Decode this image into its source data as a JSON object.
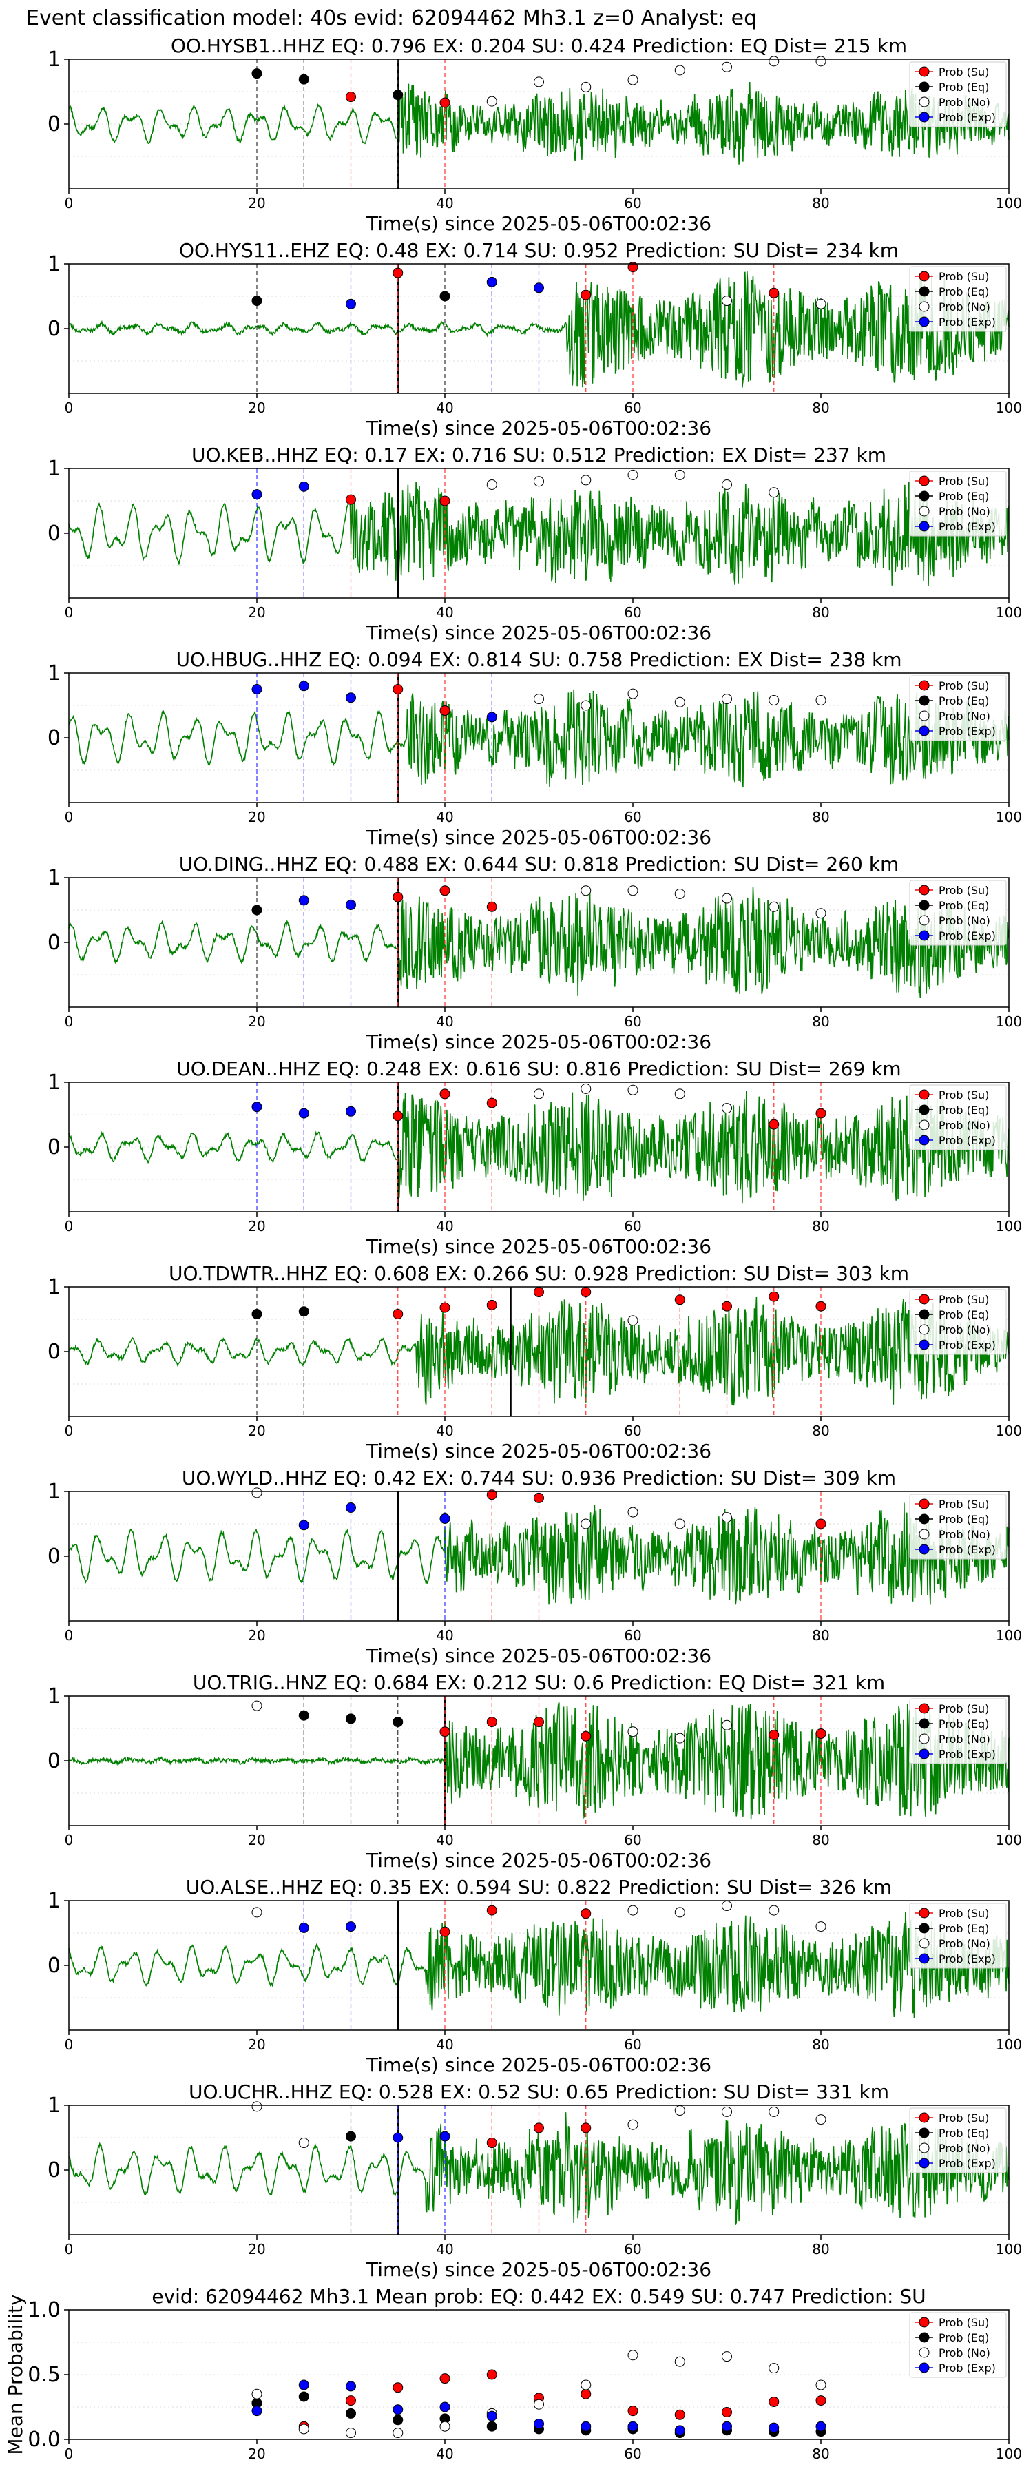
{
  "figure": {
    "header": "Event classification model: 40s evid: 62094462 Mh3.1 z=0 Analyst: eq",
    "xlabel": "Time(s) since 2025-05-06T00:02:36",
    "legend_labels": [
      "Prob (Su)",
      "Prob (Eq)",
      "Prob (No)",
      "Prob (Exp)"
    ],
    "colors": {
      "su": "#ff0000",
      "eq": "#000000",
      "no": "#ffffff",
      "exp": "#0000ff",
      "trace": "#008000"
    }
  },
  "chart_data": [
    {
      "type": "line",
      "title": "OO.HYSB1..HHZ   EQ: 0.796  EX: 0.204  SU: 0.424   Prediction: EQ    Dist= 215 km",
      "xlim": [
        0,
        100
      ],
      "ylim": [
        -1,
        1
      ],
      "xticks": [
        0,
        20,
        40,
        60,
        80,
        100
      ],
      "yticks": [
        0,
        1
      ],
      "arrival": 35,
      "onset": 35,
      "amp": 0.55,
      "pre": 0.28,
      "seed": 11,
      "su": [
        [
          30,
          0.42
        ],
        [
          40,
          0.33
        ]
      ],
      "eq": [
        [
          20,
          0.78
        ],
        [
          25,
          0.69
        ],
        [
          35,
          0.45
        ]
      ],
      "no": [
        [
          45,
          0.35
        ],
        [
          50,
          0.65
        ],
        [
          55,
          0.57
        ],
        [
          60,
          0.68
        ],
        [
          65,
          0.83
        ],
        [
          70,
          0.88
        ],
        [
          75,
          0.97
        ],
        [
          80,
          0.97
        ]
      ],
      "exp": []
    },
    {
      "type": "line",
      "title": "OO.HYS11..EHZ   EQ: 0.48  EX: 0.714  SU: 0.952   Prediction: SU    Dist= 234 km",
      "xlim": [
        0,
        100
      ],
      "ylim": [
        -1,
        1
      ],
      "xticks": [
        0,
        20,
        40,
        60,
        80,
        100
      ],
      "yticks": [
        0,
        1
      ],
      "arrival": 35,
      "onset": 53,
      "amp": 0.9,
      "pre": 0.08,
      "seed": 23,
      "su": [
        [
          35,
          0.86
        ],
        [
          55,
          0.52
        ],
        [
          60,
          0.95
        ],
        [
          75,
          0.55
        ]
      ],
      "eq": [
        [
          20,
          0.43
        ],
        [
          40,
          0.5
        ]
      ],
      "no": [
        [
          70,
          0.43
        ],
        [
          80,
          0.38
        ]
      ],
      "exp": [
        [
          30,
          0.38
        ],
        [
          45,
          0.72
        ],
        [
          50,
          0.63
        ]
      ]
    },
    {
      "type": "line",
      "title": "UO.KEB..HHZ   EQ: 0.17  EX: 0.716  SU: 0.512   Prediction: EX    Dist= 237 km",
      "xlim": [
        0,
        100
      ],
      "ylim": [
        -1,
        1
      ],
      "xticks": [
        0,
        20,
        40,
        60,
        80,
        100
      ],
      "yticks": [
        0,
        1
      ],
      "arrival": 35,
      "onset": 30,
      "amp": 0.75,
      "pre": 0.45,
      "seed": 37,
      "su": [
        [
          30,
          0.52
        ],
        [
          40,
          0.5
        ]
      ],
      "eq": [],
      "no": [
        [
          45,
          0.75
        ],
        [
          50,
          0.8
        ],
        [
          55,
          0.82
        ],
        [
          60,
          0.9
        ],
        [
          65,
          0.9
        ],
        [
          70,
          0.75
        ],
        [
          75,
          0.63
        ]
      ],
      "exp": [
        [
          20,
          0.6
        ],
        [
          25,
          0.72
        ]
      ]
    },
    {
      "type": "line",
      "title": "UO.HBUG..HHZ   EQ: 0.094  EX: 0.814  SU: 0.758   Prediction: EX    Dist= 238 km",
      "xlim": [
        0,
        100
      ],
      "ylim": [
        -1,
        1
      ],
      "xticks": [
        0,
        20,
        40,
        60,
        80,
        100
      ],
      "yticks": [
        0,
        1
      ],
      "arrival": 35,
      "onset": 36,
      "amp": 0.7,
      "pre": 0.4,
      "seed": 41,
      "su": [
        [
          35,
          0.75
        ],
        [
          40,
          0.42
        ]
      ],
      "eq": [],
      "no": [
        [
          50,
          0.6
        ],
        [
          55,
          0.5
        ],
        [
          60,
          0.68
        ],
        [
          65,
          0.55
        ],
        [
          70,
          0.6
        ],
        [
          75,
          0.58
        ],
        [
          80,
          0.58
        ]
      ],
      "exp": [
        [
          20,
          0.75
        ],
        [
          25,
          0.8
        ],
        [
          30,
          0.62
        ],
        [
          45,
          0.32
        ]
      ]
    },
    {
      "type": "line",
      "title": "UO.DING..HHZ   EQ: 0.488  EX: 0.644  SU: 0.818   Prediction: SU    Dist= 260 km",
      "xlim": [
        0,
        100
      ],
      "ylim": [
        -1,
        1
      ],
      "xticks": [
        0,
        20,
        40,
        60,
        80,
        100
      ],
      "yticks": [
        0,
        1
      ],
      "arrival": 35,
      "onset": 35,
      "amp": 0.8,
      "pre": 0.3,
      "seed": 53,
      "su": [
        [
          35,
          0.7
        ],
        [
          40,
          0.8
        ],
        [
          45,
          0.55
        ]
      ],
      "eq": [
        [
          20,
          0.5
        ]
      ],
      "no": [
        [
          55,
          0.8
        ],
        [
          60,
          0.8
        ],
        [
          65,
          0.75
        ],
        [
          70,
          0.68
        ],
        [
          75,
          0.55
        ],
        [
          80,
          0.45
        ]
      ],
      "exp": [
        [
          25,
          0.65
        ],
        [
          30,
          0.58
        ]
      ]
    },
    {
      "type": "line",
      "title": "UO.DEAN..HHZ   EQ: 0.248  EX: 0.616  SU: 0.816   Prediction: SU    Dist= 269 km",
      "xlim": [
        0,
        100
      ],
      "ylim": [
        -1,
        1
      ],
      "xticks": [
        0,
        20,
        40,
        60,
        80,
        100
      ],
      "yticks": [
        0,
        1
      ],
      "arrival": 35,
      "onset": 35,
      "amp": 0.85,
      "pre": 0.22,
      "seed": 67,
      "su": [
        [
          35,
          0.48
        ],
        [
          40,
          0.82
        ],
        [
          45,
          0.68
        ],
        [
          75,
          0.35
        ],
        [
          80,
          0.52
        ]
      ],
      "eq": [],
      "no": [
        [
          50,
          0.82
        ],
        [
          55,
          0.9
        ],
        [
          60,
          0.88
        ],
        [
          65,
          0.82
        ],
        [
          70,
          0.6
        ]
      ],
      "exp": [
        [
          20,
          0.62
        ],
        [
          25,
          0.52
        ],
        [
          30,
          0.55
        ]
      ]
    },
    {
      "type": "line",
      "title": "UO.TDWTR..HHZ   EQ: 0.608  EX: 0.266  SU: 0.928   Prediction: SU    Dist= 303 km",
      "xlim": [
        0,
        100
      ],
      "ylim": [
        -1,
        1
      ],
      "xticks": [
        0,
        20,
        40,
        60,
        80,
        100
      ],
      "yticks": [
        0,
        1
      ],
      "arrival": 47,
      "onset": 37,
      "amp": 0.8,
      "pre": 0.2,
      "seed": 71,
      "su": [
        [
          35,
          0.58
        ],
        [
          40,
          0.68
        ],
        [
          45,
          0.72
        ],
        [
          50,
          0.92
        ],
        [
          55,
          0.92
        ],
        [
          65,
          0.8
        ],
        [
          70,
          0.7
        ],
        [
          75,
          0.85
        ],
        [
          80,
          0.7
        ]
      ],
      "eq": [
        [
          20,
          0.58
        ],
        [
          25,
          0.62
        ]
      ],
      "no": [
        [
          60,
          0.48
        ]
      ],
      "exp": []
    },
    {
      "type": "line",
      "title": "UO.WYLD..HHZ   EQ: 0.42  EX: 0.744  SU: 0.936   Prediction: SU    Dist= 309 km",
      "xlim": [
        0,
        100
      ],
      "ylim": [
        -1,
        1
      ],
      "xticks": [
        0,
        20,
        40,
        60,
        80,
        100
      ],
      "yticks": [
        0,
        1
      ],
      "arrival": 35,
      "onset": 40,
      "amp": 0.75,
      "pre": 0.4,
      "seed": 83,
      "su": [
        [
          45,
          0.95
        ],
        [
          50,
          0.9
        ],
        [
          80,
          0.5
        ]
      ],
      "eq": [],
      "no": [
        [
          20,
          0.98
        ],
        [
          55,
          0.5
        ],
        [
          60,
          0.68
        ],
        [
          65,
          0.5
        ],
        [
          70,
          0.6
        ]
      ],
      "exp": [
        [
          25,
          0.48
        ],
        [
          30,
          0.75
        ],
        [
          40,
          0.58
        ]
      ]
    },
    {
      "type": "line",
      "title": "UO.TRIG..HNZ   EQ: 0.684  EX: 0.212  SU: 0.6   Prediction: EQ    Dist= 321 km",
      "xlim": [
        0,
        100
      ],
      "ylim": [
        -1,
        1
      ],
      "xticks": [
        0,
        20,
        40,
        60,
        80,
        100
      ],
      "yticks": [
        0,
        1
      ],
      "arrival": 40,
      "onset": 40,
      "amp": 0.95,
      "pre": 0.03,
      "seed": 97,
      "su": [
        [
          40,
          0.45
        ],
        [
          45,
          0.6
        ],
        [
          50,
          0.6
        ],
        [
          55,
          0.38
        ],
        [
          75,
          0.4
        ],
        [
          80,
          0.42
        ]
      ],
      "eq": [
        [
          25,
          0.7
        ],
        [
          30,
          0.65
        ],
        [
          35,
          0.6
        ]
      ],
      "no": [
        [
          20,
          0.85
        ],
        [
          60,
          0.45
        ],
        [
          65,
          0.35
        ],
        [
          70,
          0.55
        ]
      ],
      "exp": []
    },
    {
      "type": "line",
      "title": "UO.ALSE..HHZ   EQ: 0.35  EX: 0.594  SU: 0.822   Prediction: SU    Dist= 326 km",
      "xlim": [
        0,
        100
      ],
      "ylim": [
        -1,
        1
      ],
      "xticks": [
        0,
        20,
        40,
        60,
        80,
        100
      ],
      "yticks": [
        0,
        1
      ],
      "arrival": 35,
      "onset": 38,
      "amp": 0.8,
      "pre": 0.3,
      "seed": 101,
      "su": [
        [
          40,
          0.52
        ],
        [
          45,
          0.85
        ],
        [
          55,
          0.8
        ]
      ],
      "eq": [],
      "no": [
        [
          20,
          0.82
        ],
        [
          60,
          0.85
        ],
        [
          65,
          0.82
        ],
        [
          70,
          0.92
        ],
        [
          75,
          0.85
        ],
        [
          80,
          0.6
        ]
      ],
      "exp": [
        [
          25,
          0.58
        ],
        [
          30,
          0.6
        ]
      ]
    },
    {
      "type": "line",
      "title": "UO.UCHR..HHZ   EQ: 0.528  EX: 0.52  SU: 0.65   Prediction: SU    Dist= 331 km",
      "xlim": [
        0,
        100
      ],
      "ylim": [
        -1,
        1
      ],
      "xticks": [
        0,
        20,
        40,
        60,
        80,
        100
      ],
      "yticks": [
        0,
        1
      ],
      "arrival": 35,
      "onset": 38,
      "amp": 0.75,
      "pre": 0.38,
      "seed": 113,
      "su": [
        [
          45,
          0.42
        ],
        [
          50,
          0.65
        ],
        [
          55,
          0.65
        ]
      ],
      "eq": [
        [
          30,
          0.52
        ]
      ],
      "no": [
        [
          20,
          0.98
        ],
        [
          25,
          0.42
        ],
        [
          60,
          0.7
        ],
        [
          65,
          0.92
        ],
        [
          70,
          0.9
        ],
        [
          75,
          0.9
        ],
        [
          80,
          0.78
        ]
      ],
      "exp": [
        [
          35,
          0.5
        ],
        [
          40,
          0.52
        ]
      ]
    },
    {
      "type": "scatter",
      "title": "evid: 62094462  Mh3.1   Mean prob:   EQ: 0.442  EX: 0.549  SU: 0.747   Prediction: SU",
      "ylabel": "Mean Probability",
      "xlim": [
        0,
        100
      ],
      "ylim": [
        0,
        1
      ],
      "xticks": [
        0,
        20,
        40,
        60,
        80,
        100
      ],
      "yticks": [
        0.0,
        0.5,
        1.0
      ],
      "su": [
        [
          20,
          0.28
        ],
        [
          25,
          0.1
        ],
        [
          30,
          0.3
        ],
        [
          35,
          0.4
        ],
        [
          40,
          0.47
        ],
        [
          45,
          0.5
        ],
        [
          50,
          0.32
        ],
        [
          55,
          0.35
        ],
        [
          60,
          0.22
        ],
        [
          65,
          0.19
        ],
        [
          70,
          0.21
        ],
        [
          75,
          0.29
        ],
        [
          80,
          0.3
        ]
      ],
      "eq": [
        [
          20,
          0.28
        ],
        [
          25,
          0.33
        ],
        [
          30,
          0.2
        ],
        [
          35,
          0.15
        ],
        [
          40,
          0.16
        ],
        [
          45,
          0.1
        ],
        [
          50,
          0.08
        ],
        [
          55,
          0.07
        ],
        [
          60,
          0.08
        ],
        [
          65,
          0.05
        ],
        [
          70,
          0.07
        ],
        [
          75,
          0.06
        ],
        [
          80,
          0.06
        ]
      ],
      "no": [
        [
          20,
          0.35
        ],
        [
          25,
          0.08
        ],
        [
          30,
          0.05
        ],
        [
          35,
          0.05
        ],
        [
          40,
          0.1
        ],
        [
          45,
          0.2
        ],
        [
          50,
          0.27
        ],
        [
          55,
          0.42
        ],
        [
          60,
          0.65
        ],
        [
          65,
          0.6
        ],
        [
          70,
          0.64
        ],
        [
          75,
          0.55
        ],
        [
          80,
          0.42
        ]
      ],
      "exp": [
        [
          20,
          0.22
        ],
        [
          25,
          0.42
        ],
        [
          30,
          0.41
        ],
        [
          35,
          0.23
        ],
        [
          40,
          0.25
        ],
        [
          45,
          0.18
        ],
        [
          50,
          0.12
        ],
        [
          55,
          0.1
        ],
        [
          60,
          0.1
        ],
        [
          65,
          0.07
        ],
        [
          70,
          0.1
        ],
        [
          75,
          0.09
        ],
        [
          80,
          0.1
        ]
      ]
    }
  ]
}
